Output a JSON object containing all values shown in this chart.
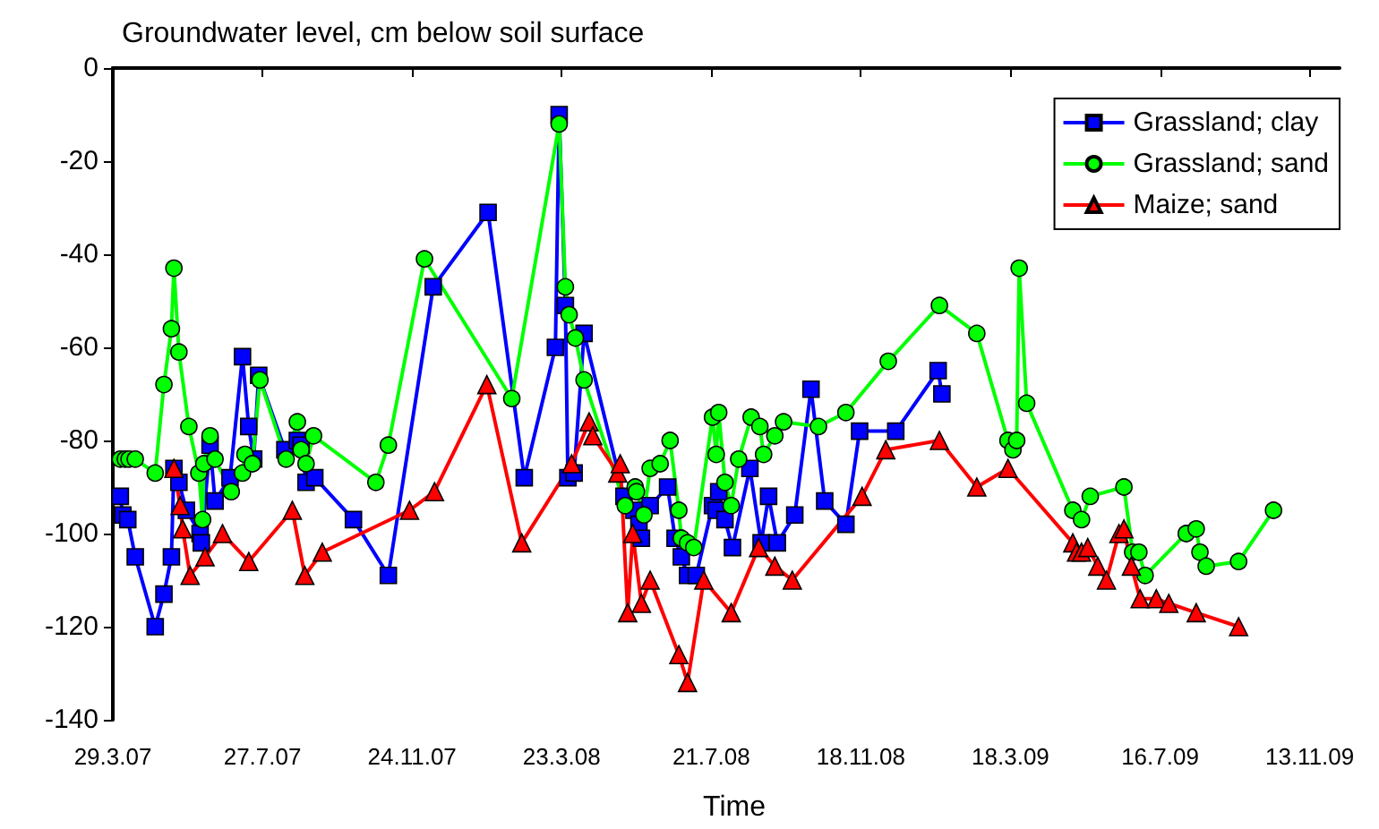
{
  "chart_data": {
    "type": "line",
    "title": "Groundwater level, cm below soil surface",
    "xlabel": "Time",
    "xlim": [
      "2007-03-29",
      "2009-12-07"
    ],
    "ylim": [
      -140,
      0
    ],
    "yticks": [
      -140,
      -120,
      -100,
      -80,
      -60,
      -40,
      -20,
      0
    ],
    "xticks": [
      {
        "value": "2007-03-29",
        "label": "29.3.07"
      },
      {
        "value": "2007-07-27",
        "label": "27.7.07"
      },
      {
        "value": "2007-11-24",
        "label": "24.11.07"
      },
      {
        "value": "2008-03-23",
        "label": "23.3.08"
      },
      {
        "value": "2008-07-21",
        "label": "21.7.08"
      },
      {
        "value": "2008-11-18",
        "label": "18.11.08"
      },
      {
        "value": "2009-03-18",
        "label": "18.3.09"
      },
      {
        "value": "2009-07-16",
        "label": "16.7.09"
      },
      {
        "value": "2009-11-13",
        "label": "13.11.09"
      }
    ],
    "grid": false,
    "legend": "top right",
    "line_style": "solid",
    "series": [
      {
        "name": "Grassland; clay",
        "color": "#0000ff",
        "marker": "square",
        "x": [
          "2007-04-04",
          "2007-04-06",
          "2007-04-10",
          "2007-04-16",
          "2007-05-02",
          "2007-05-09",
          "2007-05-15",
          "2007-05-17",
          "2007-05-21",
          "2007-05-27",
          "2007-06-07",
          "2007-06-08",
          "2007-06-15",
          "2007-06-19",
          "2007-07-01",
          "2007-07-11",
          "2007-07-16",
          "2007-07-20",
          "2007-07-24",
          "2007-08-14",
          "2007-08-24",
          "2007-08-27",
          "2007-08-31",
          "2007-09-07",
          "2007-10-08",
          "2007-11-05",
          "2007-12-11",
          "2008-01-24",
          "2008-02-22",
          "2008-03-18",
          "2008-03-21",
          "2008-03-26",
          "2008-03-28",
          "2008-04-02",
          "2008-04-10",
          "2008-05-12",
          "2008-05-20",
          "2008-05-24",
          "2008-05-26",
          "2008-06-02",
          "2008-06-16",
          "2008-06-22",
          "2008-06-27",
          "2008-07-02",
          "2008-07-09",
          "2008-07-22",
          "2008-07-25",
          "2008-07-27",
          "2008-08-01",
          "2008-08-07",
          "2008-08-21",
          "2008-08-30",
          "2008-09-05",
          "2008-09-12",
          "2008-09-26",
          "2008-10-09",
          "2008-10-20",
          "2008-11-06",
          "2008-11-17",
          "2008-12-16",
          "2009-01-19",
          "2009-01-22"
        ],
        "values": [
          -92,
          -96,
          -97,
          -105,
          -120,
          -113,
          -105,
          -86,
          -89,
          -95,
          -100,
          -102,
          -81,
          -93,
          -88,
          -62,
          -77,
          -84,
          -66,
          -82,
          -80,
          -81,
          -89,
          -88,
          -97,
          -109,
          -47,
          -31,
          -88,
          -60,
          -10,
          -51,
          -88,
          -87,
          -57,
          -92,
          -95,
          -98,
          -101,
          -94,
          -90,
          -101,
          -105,
          -109,
          -109,
          -94,
          -95,
          -91,
          -97,
          -103,
          -86,
          -102,
          -92,
          -102,
          -96,
          -69,
          -93,
          -98,
          -78,
          -78,
          -65,
          -70
        ]
      },
      {
        "name": "Grassland; sand",
        "color": "#00ff00",
        "marker": "circle",
        "x": [
          "2007-04-04",
          "2007-04-08",
          "2007-04-11",
          "2007-04-16",
          "2007-05-02",
          "2007-05-09",
          "2007-05-15",
          "2007-05-17",
          "2007-05-21",
          "2007-05-29",
          "2007-06-06",
          "2007-06-09",
          "2007-06-10",
          "2007-06-15",
          "2007-06-19",
          "2007-07-02",
          "2007-07-11",
          "2007-07-13",
          "2007-07-19",
          "2007-07-25",
          "2007-08-15",
          "2007-08-24",
          "2007-08-27",
          "2007-08-31",
          "2007-09-06",
          "2007-10-26",
          "2007-11-05",
          "2007-12-04",
          "2008-02-12",
          "2008-03-21",
          "2008-03-26",
          "2008-03-29",
          "2008-04-03",
          "2008-04-10",
          "2008-05-13",
          "2008-05-21",
          "2008-05-22",
          "2008-05-28",
          "2008-06-02",
          "2008-06-10",
          "2008-06-18",
          "2008-06-25",
          "2008-06-27",
          "2008-07-02",
          "2008-07-07",
          "2008-07-22",
          "2008-07-25",
          "2008-07-27",
          "2008-08-01",
          "2008-08-06",
          "2008-08-12",
          "2008-08-22",
          "2008-08-29",
          "2008-09-01",
          "2008-09-10",
          "2008-09-17",
          "2008-10-15",
          "2008-11-06",
          "2008-12-10",
          "2009-01-20",
          "2009-02-19",
          "2009-03-16",
          "2009-03-20",
          "2009-03-23",
          "2009-03-25",
          "2009-03-31",
          "2009-05-07",
          "2009-05-14",
          "2009-05-21",
          "2009-06-17",
          "2009-06-24",
          "2009-06-29",
          "2009-07-04",
          "2009-08-06",
          "2009-08-14",
          "2009-08-17",
          "2009-08-22",
          "2009-09-17",
          "2009-10-15"
        ],
        "values": [
          -84,
          -84,
          -84,
          -84,
          -87,
          -68,
          -56,
          -43,
          -61,
          -77,
          -87,
          -97,
          -85,
          -79,
          -84,
          -91,
          -87,
          -83,
          -85,
          -67,
          -84,
          -76,
          -82,
          -85,
          -79,
          -89,
          -81,
          -41,
          -71,
          -12,
          -47,
          -53,
          -58,
          -67,
          -94,
          -90,
          -91,
          -96,
          -86,
          -85,
          -80,
          -95,
          -101,
          -102,
          -103,
          -75,
          -83,
          -74,
          -89,
          -94,
          -84,
          -75,
          -77,
          -83,
          -79,
          -76,
          -77,
          -74,
          -63,
          -51,
          -57,
          -80,
          -82,
          -80,
          -43,
          -72,
          -95,
          -97,
          -92,
          -90,
          -104,
          -104,
          -109,
          -100,
          -99,
          -104,
          -107,
          -106,
          -95
        ]
      },
      {
        "name": "Maize; sand",
        "color": "#ff0000",
        "marker": "triangle",
        "x": [
          "2007-05-17",
          "2007-05-22",
          "2007-05-24",
          "2007-05-30",
          "2007-06-11",
          "2007-06-25",
          "2007-07-16",
          "2007-08-20",
          "2007-08-30",
          "2007-09-13",
          "2007-11-22",
          "2007-12-12",
          "2008-01-23",
          "2008-02-20",
          "2008-03-31",
          "2008-04-14",
          "2008-04-17",
          "2008-05-07",
          "2008-05-09",
          "2008-05-15",
          "2008-05-19",
          "2008-05-26",
          "2008-06-02",
          "2008-06-25",
          "2008-07-02",
          "2008-07-15",
          "2008-08-06",
          "2008-08-28",
          "2008-09-10",
          "2008-09-24",
          "2008-11-19",
          "2008-12-08",
          "2009-01-20",
          "2009-02-19",
          "2009-03-16",
          "2009-05-07",
          "2009-05-10",
          "2009-05-14",
          "2009-05-19",
          "2009-05-27",
          "2009-06-03",
          "2009-06-13",
          "2009-06-17",
          "2009-06-23",
          "2009-06-30",
          "2009-07-13",
          "2009-07-23",
          "2009-08-14",
          "2009-09-17"
        ],
        "values": [
          -86,
          -94,
          -99,
          -109,
          -105,
          -100,
          -106,
          -95,
          -109,
          -104,
          -95,
          -91,
          -68,
          -102,
          -85,
          -76,
          -79,
          -87,
          -85,
          -117,
          -100,
          -115,
          -110,
          -126,
          -132,
          -110,
          -117,
          -103,
          -107,
          -110,
          -92,
          -82,
          -80,
          -90,
          -86,
          -102,
          -104,
          -104,
          -103,
          -107,
          -110,
          -100,
          -99,
          -107,
          -114,
          -114,
          -115,
          -117,
          -120
        ]
      }
    ]
  }
}
